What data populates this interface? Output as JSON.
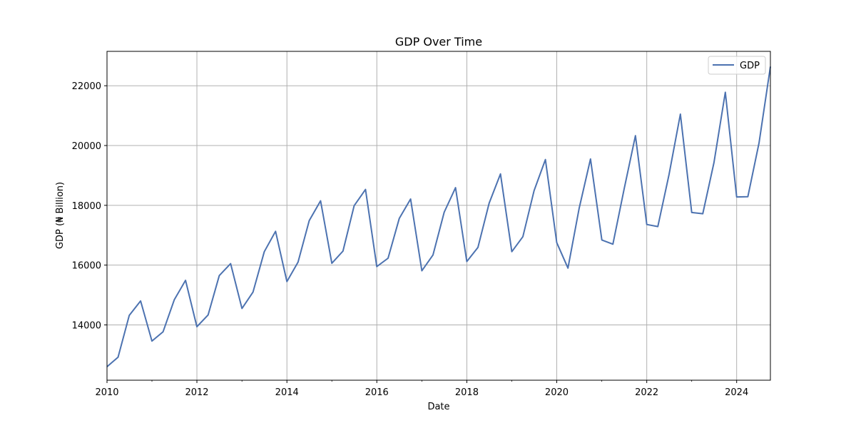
{
  "chart_data": {
    "type": "line",
    "title": "GDP Over Time",
    "xlabel": "Date",
    "ylabel": "GDP (₦ Billion)",
    "xlim": [
      "2010-01-01",
      "2024-10-01"
    ],
    "ylim": [
      12150,
      23150
    ],
    "xticks": [
      "2010",
      "2012",
      "2014",
      "2016",
      "2018",
      "2020",
      "2022",
      "2024"
    ],
    "yticks": [
      "14000",
      "16000",
      "18000",
      "20000",
      "22000"
    ],
    "grid": true,
    "legend_position": "top-right",
    "line_color": "#4c72b0",
    "series": [
      {
        "name": "GDP",
        "x": [
          "2010-01-01",
          "2010-04-01",
          "2010-07-01",
          "2010-10-01",
          "2011-01-01",
          "2011-04-01",
          "2011-07-01",
          "2011-10-01",
          "2012-01-01",
          "2012-04-01",
          "2012-07-01",
          "2012-10-01",
          "2013-01-01",
          "2013-04-01",
          "2013-07-01",
          "2013-10-01",
          "2014-01-01",
          "2014-04-01",
          "2014-07-01",
          "2014-10-01",
          "2015-01-01",
          "2015-04-01",
          "2015-07-01",
          "2015-10-01",
          "2016-01-01",
          "2016-04-01",
          "2016-07-01",
          "2016-10-01",
          "2017-01-01",
          "2017-04-01",
          "2017-07-01",
          "2017-10-01",
          "2018-01-01",
          "2018-04-01",
          "2018-07-01",
          "2018-10-01",
          "2019-01-01",
          "2019-04-01",
          "2019-07-01",
          "2019-10-01",
          "2020-01-01",
          "2020-04-01",
          "2020-07-01",
          "2020-10-01",
          "2021-01-01",
          "2021-04-01",
          "2021-07-01",
          "2021-10-01",
          "2022-01-01",
          "2022-04-01",
          "2022-07-01",
          "2022-10-01",
          "2023-01-01",
          "2023-04-01",
          "2023-07-01",
          "2023-10-01",
          "2024-01-01",
          "2024-04-01",
          "2024-07-01",
          "2024-10-01"
        ],
        "values": [
          12600,
          12920,
          14320,
          14800,
          13460,
          13770,
          14840,
          15490,
          13940,
          14330,
          15650,
          16050,
          14550,
          15100,
          16450,
          17130,
          15450,
          16100,
          17490,
          18150,
          16060,
          16470,
          17990,
          18530,
          15950,
          16230,
          17560,
          18210,
          15810,
          16340,
          17770,
          18590,
          16120,
          16590,
          18070,
          19050,
          16450,
          16950,
          18490,
          19530,
          16750,
          15900,
          17900,
          19550,
          16840,
          16700,
          18540,
          20330,
          17360,
          17290,
          19030,
          21050,
          17760,
          17720,
          19430,
          21780,
          18280,
          18290,
          20090,
          22640
        ]
      }
    ]
  }
}
